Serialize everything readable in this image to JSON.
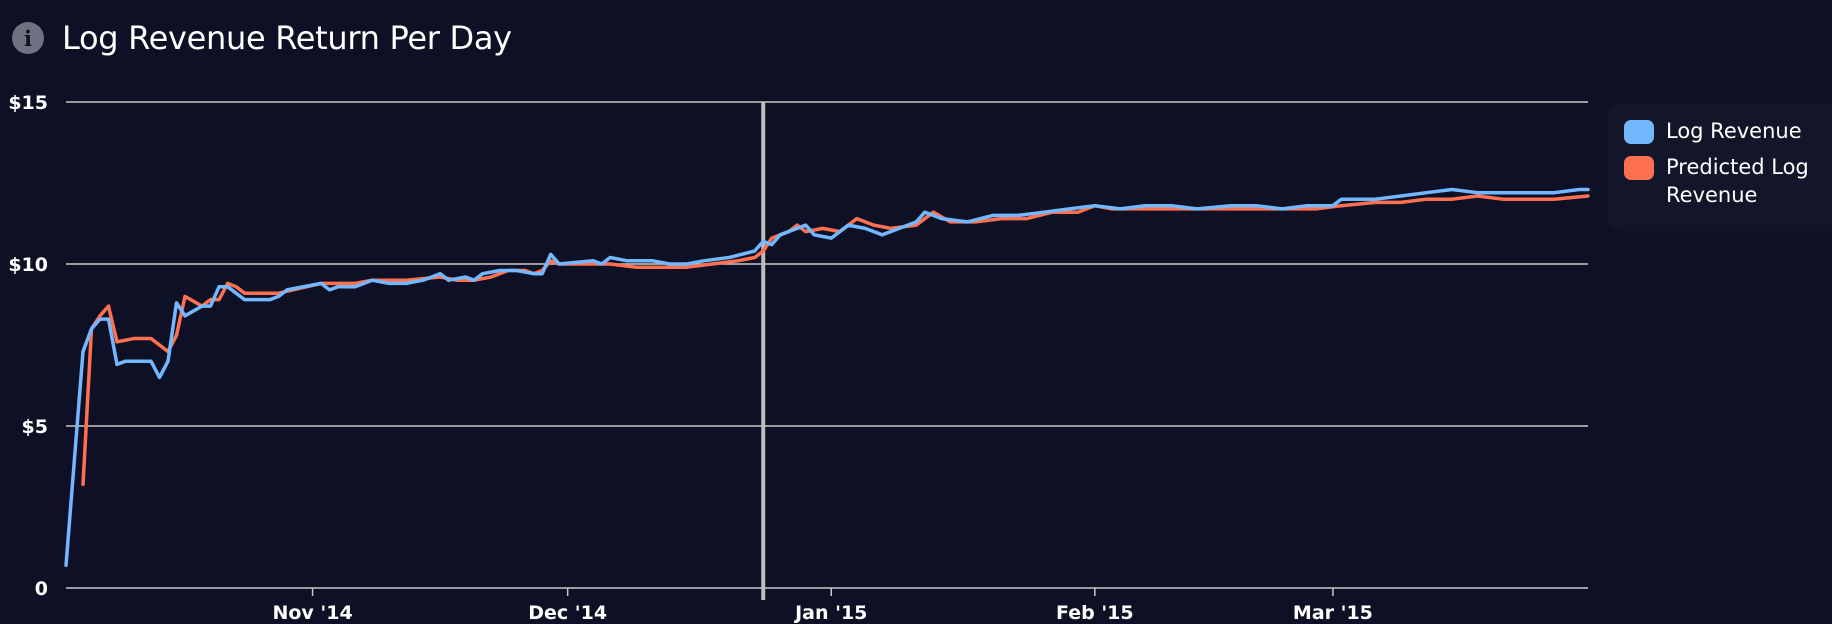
{
  "header": {
    "icon": "info-icon",
    "title": "Log Revenue Return Per Day"
  },
  "colors": {
    "background": "#0e1025",
    "log_revenue": "#73b8ff",
    "predicted": "#ff7050",
    "grid": "#c8c8c8"
  },
  "chart_data": {
    "type": "line",
    "title": "Log Revenue Return Per Day",
    "xlabel": "",
    "ylabel": "",
    "x_range": [
      "2014-10-03",
      "2015-03-31"
    ],
    "ylim": [
      0,
      15
    ],
    "yticks": [
      {
        "value": 0,
        "label": "0"
      },
      {
        "value": 5,
        "label": "$5"
      },
      {
        "value": 10,
        "label": "$10"
      },
      {
        "value": 15,
        "label": "$15"
      }
    ],
    "xticks": [
      {
        "date": "2014-11-01",
        "label": "Nov '14"
      },
      {
        "date": "2014-12-01",
        "label": "Dec '14"
      },
      {
        "date": "2015-01-01",
        "label": "Jan '15"
      },
      {
        "date": "2015-02-01",
        "label": "Feb '15"
      },
      {
        "date": "2015-03-01",
        "label": "Mar '15"
      }
    ],
    "grid": true,
    "marker_line_date": "2014-12-24",
    "legend_position": "right",
    "series": [
      {
        "name": "Log Revenue",
        "color": "#73b8ff",
        "points": [
          [
            "2014-10-03",
            0.7
          ],
          [
            "2014-10-05",
            7.3
          ],
          [
            "2014-10-06",
            8.0
          ],
          [
            "2014-10-07",
            8.3
          ],
          [
            "2014-10-08",
            8.3
          ],
          [
            "2014-10-09",
            6.9
          ],
          [
            "2014-10-10",
            7.0
          ],
          [
            "2014-10-13",
            7.0
          ],
          [
            "2014-10-14",
            6.5
          ],
          [
            "2014-10-15",
            7.0
          ],
          [
            "2014-10-16",
            8.8
          ],
          [
            "2014-10-17",
            8.4
          ],
          [
            "2014-10-19",
            8.7
          ],
          [
            "2014-10-20",
            8.7
          ],
          [
            "2014-10-21",
            9.3
          ],
          [
            "2014-10-22",
            9.3
          ],
          [
            "2014-10-23",
            9.1
          ],
          [
            "2014-10-24",
            8.9
          ],
          [
            "2014-10-27",
            8.9
          ],
          [
            "2014-10-28",
            9.0
          ],
          [
            "2014-10-29",
            9.2
          ],
          [
            "2014-11-02",
            9.4
          ],
          [
            "2014-11-03",
            9.2
          ],
          [
            "2014-11-04",
            9.3
          ],
          [
            "2014-11-06",
            9.3
          ],
          [
            "2014-11-08",
            9.5
          ],
          [
            "2014-11-10",
            9.4
          ],
          [
            "2014-11-12",
            9.4
          ],
          [
            "2014-11-14",
            9.5
          ],
          [
            "2014-11-16",
            9.7
          ],
          [
            "2014-11-17",
            9.5
          ],
          [
            "2014-11-19",
            9.6
          ],
          [
            "2014-11-20",
            9.5
          ],
          [
            "2014-11-21",
            9.7
          ],
          [
            "2014-11-23",
            9.8
          ],
          [
            "2014-11-25",
            9.8
          ],
          [
            "2014-11-27",
            9.7
          ],
          [
            "2014-11-28",
            9.7
          ],
          [
            "2014-11-29",
            10.3
          ],
          [
            "2014-11-30",
            10.0
          ],
          [
            "2014-12-04",
            10.1
          ],
          [
            "2014-12-05",
            10.0
          ],
          [
            "2014-12-06",
            10.2
          ],
          [
            "2014-12-08",
            10.1
          ],
          [
            "2014-12-11",
            10.1
          ],
          [
            "2014-12-13",
            10.0
          ],
          [
            "2014-12-15",
            10.0
          ],
          [
            "2014-12-17",
            10.1
          ],
          [
            "2014-12-20",
            10.2
          ],
          [
            "2014-12-23",
            10.4
          ],
          [
            "2014-12-24",
            10.7
          ],
          [
            "2014-12-25",
            10.6
          ],
          [
            "2014-12-26",
            10.9
          ],
          [
            "2014-12-28",
            11.1
          ],
          [
            "2014-12-29",
            11.2
          ],
          [
            "2014-12-30",
            10.9
          ],
          [
            "2015-01-01",
            10.8
          ],
          [
            "2015-01-03",
            11.2
          ],
          [
            "2015-01-05",
            11.1
          ],
          [
            "2015-01-07",
            10.9
          ],
          [
            "2015-01-09",
            11.1
          ],
          [
            "2015-01-11",
            11.3
          ],
          [
            "2015-01-12",
            11.6
          ],
          [
            "2015-01-14",
            11.4
          ],
          [
            "2015-01-17",
            11.3
          ],
          [
            "2015-01-20",
            11.5
          ],
          [
            "2015-01-23",
            11.5
          ],
          [
            "2015-01-26",
            11.6
          ],
          [
            "2015-01-29",
            11.7
          ],
          [
            "2015-02-01",
            11.8
          ],
          [
            "2015-02-04",
            11.7
          ],
          [
            "2015-02-07",
            11.8
          ],
          [
            "2015-02-10",
            11.8
          ],
          [
            "2015-02-13",
            11.7
          ],
          [
            "2015-02-17",
            11.8
          ],
          [
            "2015-02-20",
            11.8
          ],
          [
            "2015-02-23",
            11.7
          ],
          [
            "2015-02-26",
            11.8
          ],
          [
            "2015-03-01",
            11.8
          ],
          [
            "2015-03-02",
            12.0
          ],
          [
            "2015-03-06",
            12.0
          ],
          [
            "2015-03-09",
            12.1
          ],
          [
            "2015-03-12",
            12.2
          ],
          [
            "2015-03-15",
            12.3
          ],
          [
            "2015-03-18",
            12.2
          ],
          [
            "2015-03-21",
            12.2
          ],
          [
            "2015-03-24",
            12.2
          ],
          [
            "2015-03-27",
            12.2
          ],
          [
            "2015-03-30",
            12.3
          ],
          [
            "2015-03-31",
            12.3
          ]
        ]
      },
      {
        "name": "Predicted Log Revenue",
        "color": "#ff7050",
        "points": [
          [
            "2014-10-05",
            3.2
          ],
          [
            "2014-10-06",
            8.0
          ],
          [
            "2014-10-07",
            8.4
          ],
          [
            "2014-10-08",
            8.7
          ],
          [
            "2014-10-09",
            7.6
          ],
          [
            "2014-10-11",
            7.7
          ],
          [
            "2014-10-13",
            7.7
          ],
          [
            "2014-10-14",
            7.5
          ],
          [
            "2014-10-15",
            7.3
          ],
          [
            "2014-10-16",
            7.8
          ],
          [
            "2014-10-17",
            9.0
          ],
          [
            "2014-10-19",
            8.7
          ],
          [
            "2014-10-20",
            8.9
          ],
          [
            "2014-10-21",
            8.9
          ],
          [
            "2014-10-22",
            9.4
          ],
          [
            "2014-10-23",
            9.3
          ],
          [
            "2014-10-24",
            9.1
          ],
          [
            "2014-10-26",
            9.1
          ],
          [
            "2014-10-28",
            9.1
          ],
          [
            "2014-11-02",
            9.4
          ],
          [
            "2014-11-04",
            9.4
          ],
          [
            "2014-11-06",
            9.4
          ],
          [
            "2014-11-08",
            9.5
          ],
          [
            "2014-11-12",
            9.5
          ],
          [
            "2014-11-16",
            9.6
          ],
          [
            "2014-11-18",
            9.5
          ],
          [
            "2014-11-20",
            9.5
          ],
          [
            "2014-11-22",
            9.6
          ],
          [
            "2014-11-24",
            9.8
          ],
          [
            "2014-11-26",
            9.8
          ],
          [
            "2014-11-27",
            9.7
          ],
          [
            "2014-11-28",
            9.8
          ],
          [
            "2014-11-29",
            10.1
          ],
          [
            "2014-11-30",
            10.0
          ],
          [
            "2014-12-03",
            10.0
          ],
          [
            "2014-12-06",
            10.0
          ],
          [
            "2014-12-09",
            9.9
          ],
          [
            "2014-12-12",
            9.9
          ],
          [
            "2014-12-15",
            9.9
          ],
          [
            "2014-12-18",
            10.0
          ],
          [
            "2014-12-21",
            10.1
          ],
          [
            "2014-12-23",
            10.2
          ],
          [
            "2014-12-24",
            10.4
          ],
          [
            "2014-12-25",
            10.8
          ],
          [
            "2014-12-27",
            11.0
          ],
          [
            "2014-12-28",
            11.2
          ],
          [
            "2014-12-29",
            11.0
          ],
          [
            "2014-12-31",
            11.1
          ],
          [
            "2015-01-02",
            11.0
          ],
          [
            "2015-01-04",
            11.4
          ],
          [
            "2015-01-06",
            11.2
          ],
          [
            "2015-01-08",
            11.1
          ],
          [
            "2015-01-11",
            11.2
          ],
          [
            "2015-01-13",
            11.6
          ],
          [
            "2015-01-15",
            11.3
          ],
          [
            "2015-01-18",
            11.3
          ],
          [
            "2015-01-21",
            11.4
          ],
          [
            "2015-01-24",
            11.4
          ],
          [
            "2015-01-27",
            11.6
          ],
          [
            "2015-01-30",
            11.6
          ],
          [
            "2015-02-01",
            11.8
          ],
          [
            "2015-02-03",
            11.7
          ],
          [
            "2015-02-06",
            11.7
          ],
          [
            "2015-02-10",
            11.7
          ],
          [
            "2015-02-14",
            11.7
          ],
          [
            "2015-02-17",
            11.7
          ],
          [
            "2015-02-20",
            11.7
          ],
          [
            "2015-02-24",
            11.7
          ],
          [
            "2015-02-27",
            11.7
          ],
          [
            "2015-03-02",
            11.8
          ],
          [
            "2015-03-06",
            11.9
          ],
          [
            "2015-03-09",
            11.9
          ],
          [
            "2015-03-12",
            12.0
          ],
          [
            "2015-03-15",
            12.0
          ],
          [
            "2015-03-18",
            12.1
          ],
          [
            "2015-03-21",
            12.0
          ],
          [
            "2015-03-24",
            12.0
          ],
          [
            "2015-03-27",
            12.0
          ],
          [
            "2015-03-31",
            12.1
          ]
        ]
      }
    ]
  }
}
